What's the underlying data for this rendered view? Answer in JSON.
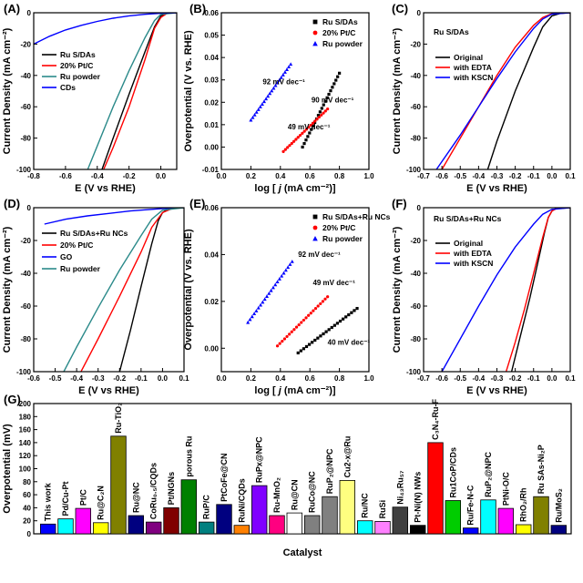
{
  "figure": {
    "title": ""
  },
  "chart_data": [
    {
      "id": "A",
      "type": "line",
      "panel_label": "(A)",
      "xlabel": "E (V vs RHE)",
      "ylabel": "Current Density (mA cm⁻²)",
      "xlim": [
        -0.8,
        0.1
      ],
      "ylim": [
        -100,
        0
      ],
      "xticks": [
        -0.8,
        -0.6,
        -0.4,
        -0.2,
        0.0
      ],
      "xtick_labels": [
        "-0.8",
        "-0.6",
        "-0.4",
        "-0.2",
        "0.0"
      ],
      "yticks": [
        0,
        -20,
        -40,
        -60,
        -80,
        -100
      ],
      "ytick_labels": [
        "0",
        "-20",
        "-40",
        "-60",
        "-80",
        "-100"
      ],
      "legend": "top-left",
      "series": [
        {
          "name": "Ru S/DAs",
          "color": "#000000",
          "points": [
            [
              -0.37,
              -100
            ],
            [
              -0.3,
              -80
            ],
            [
              -0.2,
              -52
            ],
            [
              -0.1,
              -25
            ],
            [
              -0.04,
              -9
            ],
            [
              0.0,
              -2
            ],
            [
              0.04,
              -0.2
            ],
            [
              0.1,
              0
            ]
          ]
        },
        {
          "name": "20% Pt/C",
          "color": "#ff0000",
          "points": [
            [
              -0.36,
              -100
            ],
            [
              -0.3,
              -86
            ],
            [
              -0.2,
              -60
            ],
            [
              -0.1,
              -30
            ],
            [
              -0.04,
              -10
            ],
            [
              0.0,
              -3
            ],
            [
              0.04,
              -0.3
            ],
            [
              0.1,
              0
            ]
          ]
        },
        {
          "name": "Ru powder",
          "color": "#2b8a8a",
          "points": [
            [
              -0.46,
              -100
            ],
            [
              -0.4,
              -85
            ],
            [
              -0.3,
              -60
            ],
            [
              -0.2,
              -37
            ],
            [
              -0.1,
              -16
            ],
            [
              -0.04,
              -5
            ],
            [
              0.0,
              -1
            ],
            [
              0.1,
              0
            ]
          ]
        },
        {
          "name": "CDs",
          "color": "#0000ff",
          "points": [
            [
              -0.8,
              -20
            ],
            [
              -0.7,
              -15
            ],
            [
              -0.6,
              -11
            ],
            [
              -0.5,
              -8
            ],
            [
              -0.4,
              -5.5
            ],
            [
              -0.3,
              -3.5
            ],
            [
              -0.2,
              -2
            ],
            [
              -0.1,
              -1
            ],
            [
              0.0,
              -0.3
            ],
            [
              0.1,
              0
            ]
          ]
        }
      ]
    },
    {
      "id": "B",
      "type": "scatter",
      "panel_label": "(B)",
      "xlabel": "log [ j (mA cm⁻²)]",
      "xlabel_pre": "log [ ",
      "xlabel_j": "j",
      "xlabel_post": " (mA cm⁻²)]",
      "ylabel": "Overpotential (V vs. RHE)",
      "xlim": [
        0.0,
        1.0
      ],
      "ylim": [
        -0.01,
        0.06
      ],
      "xticks": [
        0.0,
        0.2,
        0.4,
        0.6,
        0.8,
        1.0
      ],
      "xtick_labels": [
        "0.0",
        "0.2",
        "0.4",
        "0.6",
        "0.8",
        "1.0"
      ],
      "yticks": [
        -0.01,
        0.0,
        0.01,
        0.02,
        0.03,
        0.04,
        0.05,
        0.06
      ],
      "ytick_labels": [
        "-0.01",
        "0.00",
        "0.01",
        "0.02",
        "0.03",
        "0.04",
        "0.05",
        "0.06"
      ],
      "legend": "top-right",
      "series": [
        {
          "name": "Ru S/DAs",
          "color": "#000000",
          "marker": "square",
          "x_range": [
            0.55,
            0.8
          ],
          "y_range": [
            0.0,
            0.033
          ]
        },
        {
          "name": "20% Pt/C",
          "color": "#ff0000",
          "marker": "circle",
          "x_range": [
            0.42,
            0.72
          ],
          "y_range": [
            -0.002,
            0.017
          ]
        },
        {
          "name": "Ru powder",
          "color": "#0000ff",
          "marker": "triangle",
          "x_range": [
            0.2,
            0.47
          ],
          "y_range": [
            0.012,
            0.037
          ]
        }
      ],
      "annotations": [
        {
          "text": "92 mV dec⁻¹",
          "x": 0.28,
          "y": 0.028
        },
        {
          "text": "90 mV dec⁻¹",
          "x": 0.61,
          "y": 0.02
        },
        {
          "text": "49 mV dec⁻¹",
          "x": 0.45,
          "y": 0.008
        }
      ]
    },
    {
      "id": "C",
      "type": "line",
      "panel_label": "(C)",
      "xlabel": "E (V vs RHE)",
      "ylabel": "Current Density (mA cm⁻²)",
      "xlim": [
        -0.7,
        0.1
      ],
      "ylim": [
        -100,
        0
      ],
      "xticks": [
        -0.7,
        -0.6,
        -0.5,
        -0.4,
        -0.3,
        -0.2,
        -0.1,
        0.0,
        0.1
      ],
      "xtick_labels": [
        "-0.7",
        "-0.6",
        "-0.5",
        "-0.4",
        "-0.3",
        "-0.2",
        "-0.1",
        "0.0",
        "0.1"
      ],
      "yticks": [
        0,
        -20,
        -40,
        -60,
        -80,
        -100
      ],
      "ytick_labels": [
        "0",
        "-20",
        "-40",
        "-60",
        "-80",
        "-100"
      ],
      "legend": "left",
      "inner_text": "Ru S/DAs",
      "series": [
        {
          "name": "Original",
          "color": "#000000",
          "points": [
            [
              -0.35,
              -100
            ],
            [
              -0.3,
              -82
            ],
            [
              -0.2,
              -50
            ],
            [
              -0.1,
              -22
            ],
            [
              -0.05,
              -9
            ],
            [
              0.0,
              -2
            ],
            [
              0.05,
              -0.3
            ],
            [
              0.1,
              0
            ]
          ]
        },
        {
          "name": "with EDTA",
          "color": "#ff0000",
          "points": [
            [
              -0.6,
              -100
            ],
            [
              -0.5,
              -80
            ],
            [
              -0.4,
              -60
            ],
            [
              -0.3,
              -40
            ],
            [
              -0.2,
              -22
            ],
            [
              -0.1,
              -8
            ],
            [
              -0.05,
              -3
            ],
            [
              0.0,
              -0.5
            ],
            [
              0.1,
              0
            ]
          ]
        },
        {
          "name": "with KSCN",
          "color": "#0000ff",
          "points": [
            [
              -0.63,
              -100
            ],
            [
              -0.5,
              -78
            ],
            [
              -0.4,
              -60
            ],
            [
              -0.3,
              -42
            ],
            [
              -0.2,
              -25
            ],
            [
              -0.1,
              -10
            ],
            [
              -0.05,
              -4
            ],
            [
              0.0,
              -0.8
            ],
            [
              0.1,
              0
            ]
          ]
        }
      ]
    },
    {
      "id": "D",
      "type": "line",
      "panel_label": "(D)",
      "xlabel": "E (V vs RHE)",
      "ylabel": "Current Density (mA cm⁻²)",
      "xlim": [
        -0.6,
        0.1
      ],
      "ylim": [
        -100,
        0
      ],
      "xticks": [
        -0.6,
        -0.5,
        -0.4,
        -0.3,
        -0.2,
        -0.1,
        0.0,
        0.1
      ],
      "xtick_labels": [
        "-0.6",
        "-0.5",
        "-0.4",
        "-0.3",
        "-0.2",
        "-0.1",
        "0.0",
        "0.1"
      ],
      "yticks": [
        0,
        -20,
        -40,
        -60,
        -80,
        -100
      ],
      "ytick_labels": [
        "0",
        "-20",
        "-40",
        "-60",
        "-80",
        "-100"
      ],
      "legend": "top-left",
      "series": [
        {
          "name": "Ru S/DAs+Ru NCs",
          "color": "#000000",
          "points": [
            [
              -0.2,
              -100
            ],
            [
              -0.15,
              -75
            ],
            [
              -0.1,
              -48
            ],
            [
              -0.05,
              -22
            ],
            [
              -0.02,
              -8
            ],
            [
              0.0,
              -3
            ],
            [
              0.03,
              -0.5
            ],
            [
              0.1,
              0
            ]
          ]
        },
        {
          "name": "20% Pt/C",
          "color": "#ff0000",
          "points": [
            [
              -0.38,
              -100
            ],
            [
              -0.3,
              -80
            ],
            [
              -0.2,
              -54
            ],
            [
              -0.1,
              -27
            ],
            [
              -0.05,
              -12
            ],
            [
              0.0,
              -3
            ],
            [
              0.05,
              -0.3
            ],
            [
              0.1,
              0
            ]
          ]
        },
        {
          "name": "GO",
          "color": "#0000ff",
          "points": [
            [
              -0.55,
              -10
            ],
            [
              -0.45,
              -7
            ],
            [
              -0.35,
              -5
            ],
            [
              -0.25,
              -3.5
            ],
            [
              -0.15,
              -2
            ],
            [
              -0.05,
              -1
            ],
            [
              0.0,
              -0.5
            ],
            [
              0.1,
              0
            ]
          ]
        },
        {
          "name": "Ru powder",
          "color": "#2b8a8a",
          "points": [
            [
              -0.46,
              -100
            ],
            [
              -0.4,
              -85
            ],
            [
              -0.3,
              -61
            ],
            [
              -0.2,
              -38
            ],
            [
              -0.1,
              -17
            ],
            [
              -0.05,
              -7
            ],
            [
              0.0,
              -1.5
            ],
            [
              0.1,
              0
            ]
          ]
        }
      ]
    },
    {
      "id": "E",
      "type": "scatter",
      "panel_label": "(E)",
      "xlabel": "log [ j (mA cm⁻²)]",
      "xlabel_pre": "log [ ",
      "xlabel_j": "j",
      "xlabel_post": " (mA cm⁻²)]",
      "ylabel": "Overpotential (V vs. RHE)",
      "xlim": [
        0.0,
        1.0
      ],
      "ylim": [
        -0.01,
        0.06
      ],
      "xticks": [
        0.0,
        0.2,
        0.4,
        0.6,
        0.8,
        1.0
      ],
      "xtick_labels": [
        "0.0",
        "0.2",
        "0.4",
        "0.6",
        "0.8",
        "1.0"
      ],
      "yticks": [
        0.0,
        0.02,
        0.04,
        0.06
      ],
      "ytick_labels": [
        "0.00",
        "0.02",
        "0.04",
        "0.06"
      ],
      "legend": "top-right",
      "series": [
        {
          "name": "Ru S/DAs+Ru NCs",
          "color": "#000000",
          "marker": "square",
          "x_range": [
            0.52,
            0.92
          ],
          "y_range": [
            -0.002,
            0.017
          ]
        },
        {
          "name": "20% Pt/C",
          "color": "#ff0000",
          "marker": "circle",
          "x_range": [
            0.38,
            0.72
          ],
          "y_range": [
            0.001,
            0.022
          ]
        },
        {
          "name": "Ru powder",
          "color": "#0000ff",
          "marker": "triangle",
          "x_range": [
            0.18,
            0.48
          ],
          "y_range": [
            0.011,
            0.037
          ]
        }
      ],
      "annotations": [
        {
          "text": "92 mV dec⁻¹",
          "x": 0.52,
          "y": 0.039
        },
        {
          "text": "49 mV dec⁻¹",
          "x": 0.62,
          "y": 0.027
        },
        {
          "text": "40 mV dec⁻¹",
          "x": 0.72,
          "y": 0.0015
        }
      ]
    },
    {
      "id": "F",
      "type": "line",
      "panel_label": "(F)",
      "xlabel": "E (V vs RHE)",
      "ylabel": "Current Density (mA cm⁻²)",
      "xlim": [
        -0.7,
        0.1
      ],
      "ylim": [
        -100,
        0
      ],
      "xticks": [
        -0.7,
        -0.6,
        -0.5,
        -0.4,
        -0.3,
        -0.2,
        -0.1,
        0.0,
        0.1
      ],
      "xtick_labels": [
        "-0.7",
        "-0.6",
        "-0.5",
        "-0.4",
        "-0.3",
        "-0.2",
        "-0.1",
        "0.0",
        "0.1"
      ],
      "yticks": [
        0,
        -20,
        -40,
        -60,
        -80,
        -100
      ],
      "ytick_labels": [
        "0",
        "-20",
        "-40",
        "-60",
        "-80",
        "-100"
      ],
      "legend": "left",
      "inner_text": "Ru S/DAs+Ru NCs",
      "series": [
        {
          "name": "Original",
          "color": "#000000",
          "points": [
            [
              -0.22,
              -100
            ],
            [
              -0.18,
              -82
            ],
            [
              -0.12,
              -55
            ],
            [
              -0.08,
              -35
            ],
            [
              -0.04,
              -15
            ],
            [
              -0.02,
              -6
            ],
            [
              0.0,
              -2
            ],
            [
              0.02,
              -0.5
            ],
            [
              0.1,
              0
            ]
          ]
        },
        {
          "name": "with EDTA",
          "color": "#ff0000",
          "points": [
            [
              -0.25,
              -100
            ],
            [
              -0.2,
              -82
            ],
            [
              -0.15,
              -62
            ],
            [
              -0.1,
              -40
            ],
            [
              -0.05,
              -18
            ],
            [
              -0.02,
              -6
            ],
            [
              0.0,
              -2
            ],
            [
              0.03,
              -0.3
            ],
            [
              0.1,
              0
            ]
          ]
        },
        {
          "name": "with KSCN",
          "color": "#0000ff",
          "points": [
            [
              -0.6,
              -100
            ],
            [
              -0.5,
              -80
            ],
            [
              -0.4,
              -60
            ],
            [
              -0.3,
              -41
            ],
            [
              -0.2,
              -24
            ],
            [
              -0.1,
              -10
            ],
            [
              -0.05,
              -4
            ],
            [
              0.0,
              -1
            ],
            [
              0.1,
              0
            ]
          ]
        }
      ]
    },
    {
      "id": "G",
      "type": "bar",
      "panel_label": "(G)",
      "xlabel": "Catalyst",
      "ylabel": "Overpotential (mV)",
      "ylim": [
        0,
        200
      ],
      "yticks": [
        0,
        20,
        40,
        60,
        80,
        100,
        120,
        140,
        160,
        180,
        200
      ],
      "ytick_labels": [
        "0",
        "20",
        "40",
        "60",
        "80",
        "100",
        "120",
        "140",
        "160",
        "180",
        "200"
      ],
      "categories": [
        "This work",
        "Pd/Cu-Pt",
        "Pt/C",
        "Ru@C₂N",
        "Ru-TiO₂",
        "Ru@NC",
        "CoRu₀.₅/CQDs",
        "Pt/NGNs",
        "porous Ru",
        "RuP/C",
        "PtCoFe@CN",
        "RuNi/CQDs",
        "RuPx@NPC",
        "Ru-MnO₂",
        "Ru@CN",
        "RuCo@NC",
        "RuP₂@NPC",
        "Cu2-x@Ru",
        "Ru/NC",
        "RuSi",
        "Ni₄₃Ru₅₇",
        "Pt-Ni(N) NWs",
        "C₃N₄-Ru-F",
        "Ru1CoP/CDs",
        "Ru/Fe-N-C",
        "RuP₂@NPC",
        "PtNi-O/C",
        "RhO₂/Rh",
        "Ru SAs-Ni₂P",
        "Ru/MoS₂"
      ],
      "values": [
        15,
        23,
        39,
        17,
        150,
        28,
        18,
        40,
        83,
        18,
        45,
        13,
        74,
        28,
        32,
        28,
        57,
        82,
        20,
        19,
        41,
        13,
        140,
        51,
        9,
        52,
        39,
        14,
        57,
        13
      ],
      "colors": [
        "#0000ff",
        "#00ffff",
        "#ff00ff",
        "#ffff00",
        "#808000",
        "#000080",
        "#800080",
        "#800000",
        "#008000",
        "#008080",
        "#000080",
        "#ff8000",
        "#8000ff",
        "#ff0080",
        "#ffffff",
        "#808080",
        "#808080",
        "#ffff80",
        "#00ffff",
        "#ff80ff",
        "#404040",
        "#000000",
        "#ff0000",
        "#00cc00",
        "#0000ff",
        "#00ffff",
        "#ff00ff",
        "#ffff00",
        "#808000",
        "#000080"
      ]
    }
  ]
}
